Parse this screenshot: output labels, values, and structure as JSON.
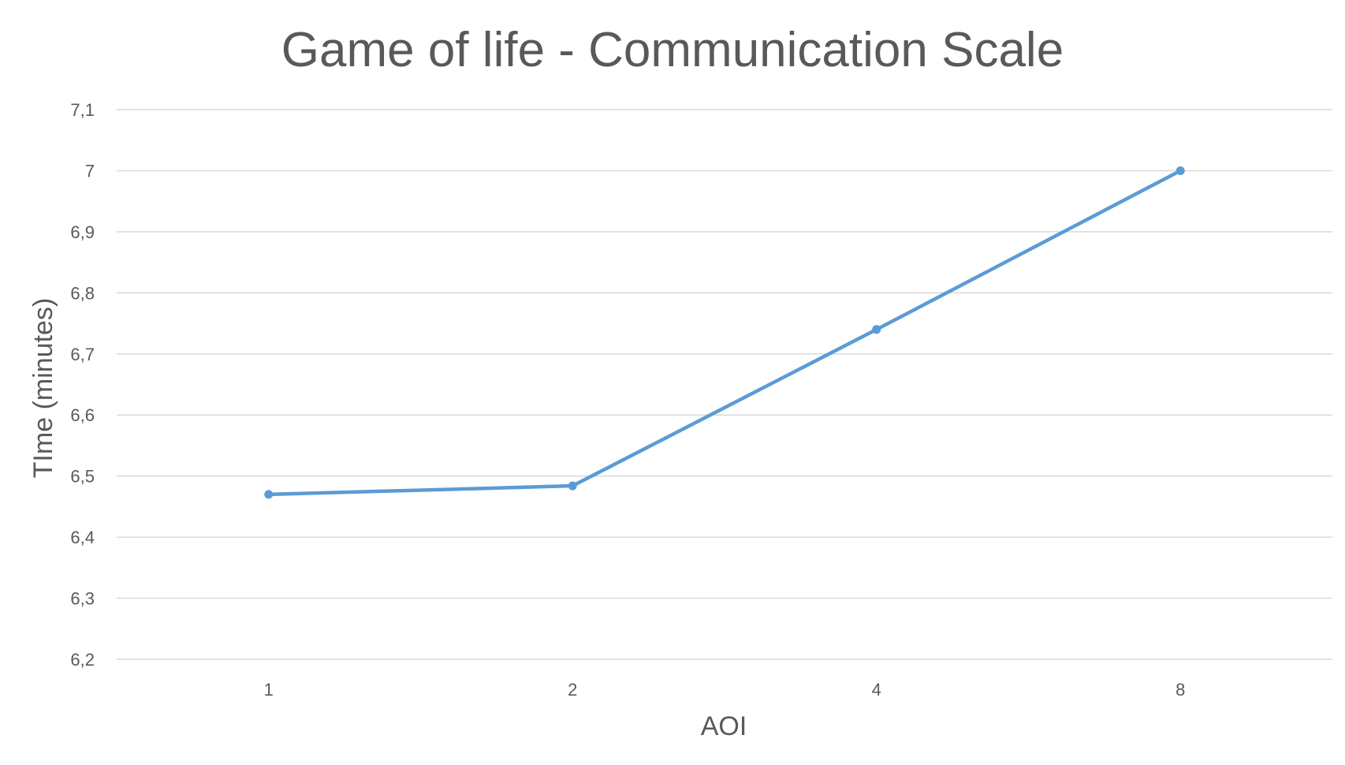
{
  "chart_data": {
    "type": "line",
    "title": "Game of life - Communication Scale",
    "xlabel": "AOI",
    "ylabel": "TIme (minutes)",
    "categories": [
      "1",
      "2",
      "4",
      "8"
    ],
    "series": [
      {
        "values": [
          6.47,
          6.484,
          6.74,
          7.0
        ],
        "color": "#5b9bd5"
      }
    ],
    "ylim": [
      6.2,
      7.1
    ],
    "yticks": [
      "6,2",
      "6,3",
      "6,4",
      "6,5",
      "6,6",
      "6,7",
      "6,8",
      "6,9",
      "7",
      "7,1"
    ],
    "grid": true,
    "legend": "none"
  }
}
